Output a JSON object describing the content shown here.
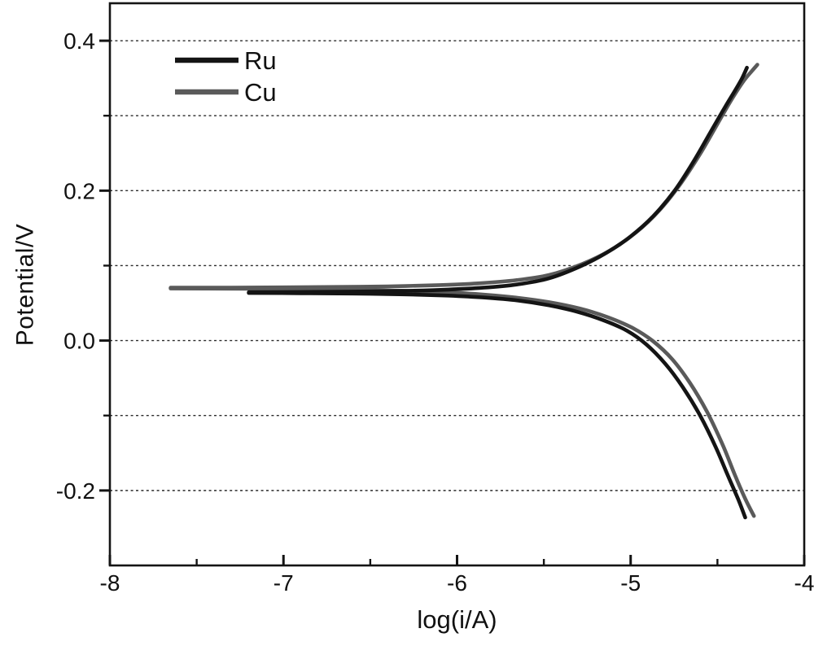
{
  "figure": {
    "background": "#ffffff",
    "frame_color": "#141414",
    "grid_color": "#2b2b2b",
    "text_color": "#111111"
  },
  "chart_data": {
    "type": "line",
    "title": "",
    "xlabel": "log(i/A)",
    "ylabel": "Potential/V",
    "xlim": [
      -8,
      -4
    ],
    "ylim": [
      -0.3,
      0.45
    ],
    "grid": "horizontal dashed lines at every 0.1 V",
    "legend_position": "upper-left inside plot, no border",
    "x_major_ticks": [
      -8,
      -7,
      -6,
      -5,
      -4
    ],
    "x_major_tick_labels": [
      "-8",
      "-7",
      "-6",
      "-5",
      "-4"
    ],
    "x_minor_ticks": [
      -7.5,
      -6.5,
      -5.5,
      -4.5
    ],
    "y_major_ticks": [
      0.4,
      0.2,
      0.0,
      -0.2
    ],
    "y_major_tick_labels": [
      "0.4",
      "0.2",
      "0.0",
      "-0.2"
    ],
    "y_minor_ticks": [
      0.3,
      0.1,
      -0.1
    ],
    "y_gridlines": [
      0.4,
      0.3,
      0.2,
      0.1,
      0.0,
      -0.1,
      -0.2
    ],
    "series": [
      {
        "name": "Ru",
        "color": "#141414",
        "corrosion_potential_V": 0.064,
        "anodic_points": [
          [
            -7.2,
            0.0645
          ],
          [
            -6.9,
            0.0648
          ],
          [
            -6.6,
            0.0653
          ],
          [
            -6.3,
            0.0663
          ],
          [
            -6.05,
            0.068
          ],
          [
            -5.85,
            0.0705
          ],
          [
            -5.65,
            0.075
          ],
          [
            -5.47,
            0.083
          ],
          [
            -5.29,
            0.099
          ],
          [
            -5.14,
            0.117
          ],
          [
            -5.0,
            0.139
          ],
          [
            -4.87,
            0.166
          ],
          [
            -4.75,
            0.199
          ],
          [
            -4.64,
            0.238
          ],
          [
            -4.54,
            0.278
          ],
          [
            -4.46,
            0.31
          ],
          [
            -4.4,
            0.333
          ],
          [
            -4.36,
            0.349
          ],
          [
            -4.33,
            0.364
          ]
        ],
        "cathodic_points": [
          [
            -7.2,
            0.0635
          ],
          [
            -6.9,
            0.0632
          ],
          [
            -6.6,
            0.0627
          ],
          [
            -6.3,
            0.0617
          ],
          [
            -6.05,
            0.06
          ],
          [
            -5.85,
            0.0575
          ],
          [
            -5.65,
            0.0535
          ],
          [
            -5.47,
            0.047
          ],
          [
            -5.3,
            0.038
          ],
          [
            -5.15,
            0.0265
          ],
          [
            -5.02,
            0.013
          ],
          [
            -4.91,
            -0.005
          ],
          [
            -4.8,
            -0.031
          ],
          [
            -4.7,
            -0.062
          ],
          [
            -4.6,
            -0.1
          ],
          [
            -4.51,
            -0.142
          ],
          [
            -4.44,
            -0.18
          ],
          [
            -4.38,
            -0.212
          ],
          [
            -4.34,
            -0.236
          ]
        ]
      },
      {
        "name": "Cu",
        "color": "#5a5a5a",
        "corrosion_potential_V": 0.07,
        "anodic_points": [
          [
            -7.65,
            0.0705
          ],
          [
            -7.3,
            0.0707
          ],
          [
            -7.0,
            0.071
          ],
          [
            -6.7,
            0.0715
          ],
          [
            -6.4,
            0.0723
          ],
          [
            -6.1,
            0.074
          ],
          [
            -5.88,
            0.0763
          ],
          [
            -5.66,
            0.0805
          ],
          [
            -5.47,
            0.0875
          ],
          [
            -5.28,
            0.102
          ],
          [
            -5.12,
            0.12
          ],
          [
            -4.97,
            0.144
          ],
          [
            -4.83,
            0.175
          ],
          [
            -4.71,
            0.21
          ],
          [
            -4.6,
            0.249
          ],
          [
            -4.5,
            0.289
          ],
          [
            -4.42,
            0.321
          ],
          [
            -4.35,
            0.346
          ],
          [
            -4.3,
            0.36
          ],
          [
            -4.27,
            0.368
          ]
        ],
        "cathodic_points": [
          [
            -7.65,
            0.0695
          ],
          [
            -7.3,
            0.0693
          ],
          [
            -7.0,
            0.0689
          ],
          [
            -6.7,
            0.0682
          ],
          [
            -6.4,
            0.067
          ],
          [
            -6.1,
            0.0648
          ],
          [
            -5.88,
            0.062
          ],
          [
            -5.66,
            0.0573
          ],
          [
            -5.47,
            0.0512
          ],
          [
            -5.29,
            0.0425
          ],
          [
            -5.13,
            0.031
          ],
          [
            -4.99,
            0.017
          ],
          [
            -4.87,
            -0.001
          ],
          [
            -4.76,
            -0.025
          ],
          [
            -4.66,
            -0.056
          ],
          [
            -4.56,
            -0.095
          ],
          [
            -4.47,
            -0.139
          ],
          [
            -4.4,
            -0.179
          ],
          [
            -4.34,
            -0.211
          ],
          [
            -4.29,
            -0.234
          ]
        ]
      }
    ]
  }
}
